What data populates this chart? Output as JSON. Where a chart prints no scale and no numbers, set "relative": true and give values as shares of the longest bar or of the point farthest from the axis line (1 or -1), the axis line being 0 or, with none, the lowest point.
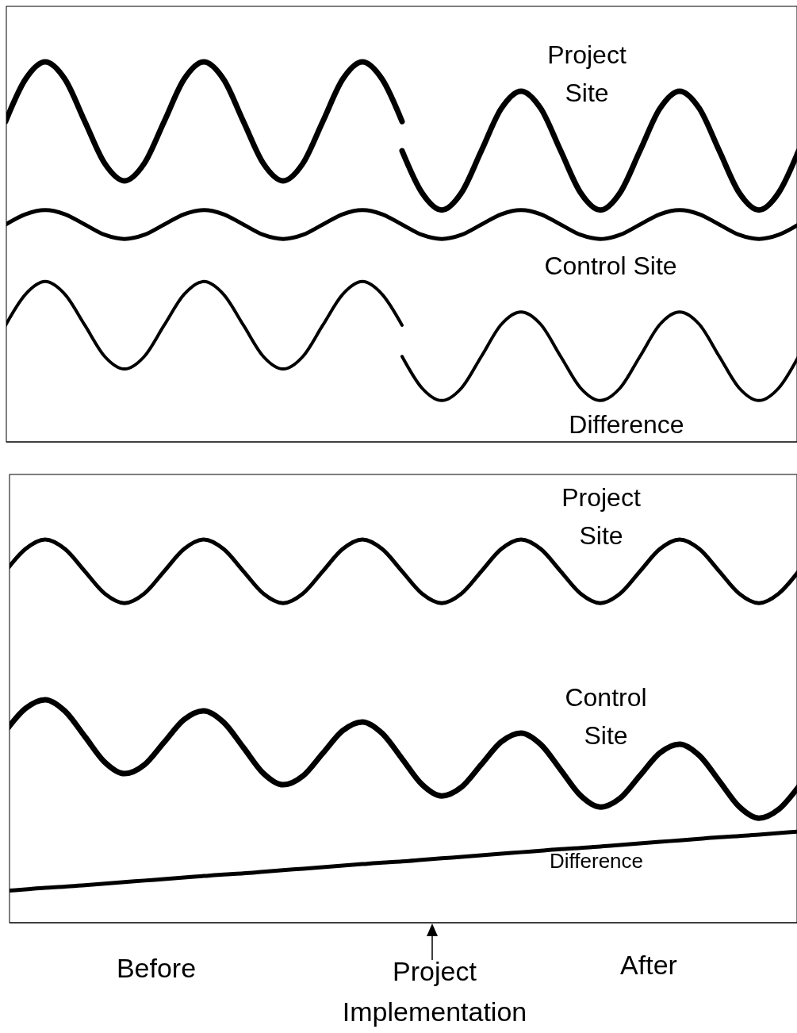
{
  "chart_data": [
    {
      "type": "line",
      "relative": true,
      "categories": [
        null,
        null,
        null,
        null,
        null,
        null,
        null,
        null,
        null,
        null,
        null,
        null,
        null,
        null,
        null,
        null,
        null,
        null,
        null,
        null,
        null,
        null,
        null,
        null,
        null,
        null,
        null,
        null,
        null,
        null,
        null,
        null,
        null,
        null,
        null,
        null,
        null,
        null,
        null,
        null,
        null
      ],
      "series": [
        {
          "color": "#000000",
          "values": [
            0.843,
            0.954,
            1.0,
            0.954,
            0.843,
            0.733,
            0.687,
            0.733,
            0.843,
            0.954,
            1.0,
            0.954,
            0.843,
            0.733,
            0.687,
            0.733,
            0.843,
            0.954,
            1.0,
            0.954,
            0.843,
            null,
            null,
            null,
            null,
            null,
            null,
            null,
            null,
            null,
            null,
            null,
            null,
            null,
            null,
            null,
            null,
            null,
            null,
            null,
            null
          ]
        },
        {
          "name": "Project Site",
          "color": "#000000",
          "values": [
            null,
            null,
            null,
            null,
            null,
            null,
            null,
            null,
            null,
            null,
            null,
            null,
            null,
            null,
            null,
            null,
            null,
            null,
            null,
            null,
            0.766,
            0.656,
            0.61,
            0.656,
            0.766,
            0.877,
            0.923,
            0.877,
            0.766,
            0.656,
            0.61,
            0.656,
            0.766,
            0.877,
            0.923,
            0.877,
            0.766,
            0.656,
            0.61,
            0.656,
            0.766
          ]
        },
        {
          "name": "Control Site",
          "color": "#000000",
          "values": [
            0.572,
            0.599,
            0.61,
            0.599,
            0.572,
            0.545,
            0.534,
            0.545,
            0.572,
            0.599,
            0.61,
            0.599,
            0.572,
            0.545,
            0.534,
            0.545,
            0.572,
            0.599,
            0.61,
            0.599,
            0.572,
            0.545,
            0.534,
            0.545,
            0.572,
            0.599,
            0.61,
            0.599,
            0.572,
            0.545,
            0.534,
            0.545,
            0.572,
            0.599,
            0.61,
            0.599,
            0.572,
            0.545,
            0.534,
            0.545,
            0.572
          ]
        },
        {
          "color": "#000000",
          "values": [
            0.307,
            0.388,
            0.422,
            0.388,
            0.307,
            0.225,
            0.192,
            0.225,
            0.307,
            0.388,
            0.422,
            0.388,
            0.307,
            0.225,
            0.192,
            0.225,
            0.307,
            0.388,
            0.422,
            0.388,
            0.307,
            null,
            null,
            null,
            null,
            null,
            null,
            null,
            null,
            null,
            null,
            null,
            null,
            null,
            null,
            null,
            null,
            null,
            null,
            null,
            null
          ]
        },
        {
          "name": "Difference",
          "color": "#000000",
          "values": [
            null,
            null,
            null,
            null,
            null,
            null,
            null,
            null,
            null,
            null,
            null,
            null,
            null,
            null,
            null,
            null,
            null,
            null,
            null,
            null,
            0.225,
            0.142,
            0.109,
            0.142,
            0.225,
            0.309,
            0.342,
            0.309,
            0.225,
            0.142,
            0.109,
            0.142,
            0.225,
            0.309,
            0.342,
            0.309,
            0.225,
            0.142,
            0.109,
            0.142,
            0.225
          ]
        }
      ]
    },
    {
      "type": "line",
      "relative": true,
      "categories": [
        null,
        null,
        null,
        null,
        null,
        null,
        null,
        null,
        null,
        null,
        null,
        null,
        null,
        null,
        null,
        null,
        null,
        null,
        null,
        null,
        null,
        null,
        null,
        null,
        null,
        null,
        null,
        null,
        null,
        null,
        null,
        null,
        null,
        null,
        null,
        null,
        null,
        null,
        null,
        null,
        null
      ],
      "series": [
        {
          "name": "Project Site",
          "color": "#000000",
          "values": [
            0.917,
            0.975,
            1.0,
            0.975,
            0.917,
            0.859,
            0.834,
            0.859,
            0.917,
            0.975,
            1.0,
            0.975,
            0.917,
            0.859,
            0.834,
            0.859,
            0.917,
            0.975,
            1.0,
            0.975,
            0.917,
            0.859,
            0.834,
            0.859,
            0.917,
            0.975,
            1.0,
            0.975,
            0.917,
            0.859,
            0.834,
            0.859,
            0.917,
            0.975,
            1.0,
            0.975,
            0.917,
            0.859,
            0.834,
            0.859,
            0.917
          ]
        },
        {
          "name": "Control Site",
          "color": "#000000",
          "values": [
            0.5,
            0.559,
            0.582,
            0.552,
            0.486,
            0.419,
            0.389,
            0.412,
            0.471,
            0.53,
            0.553,
            0.523,
            0.457,
            0.39,
            0.36,
            0.383,
            0.442,
            0.501,
            0.524,
            0.494,
            0.428,
            0.361,
            0.331,
            0.354,
            0.413,
            0.472,
            0.495,
            0.465,
            0.399,
            0.332,
            0.302,
            0.325,
            0.384,
            0.443,
            0.466,
            0.436,
            0.37,
            0.303,
            0.273,
            0.296,
            0.355
          ]
        },
        {
          "name": "Difference",
          "color": "#000000",
          "values": [
            0.083,
            0.087,
            0.091,
            0.094,
            0.098,
            0.102,
            0.106,
            0.11,
            0.114,
            0.118,
            0.122,
            0.126,
            0.129,
            0.133,
            0.137,
            0.141,
            0.145,
            0.149,
            0.153,
            0.157,
            0.16,
            0.164,
            0.168,
            0.172,
            0.176,
            0.18,
            0.184,
            0.188,
            0.192,
            0.195,
            0.199,
            0.203,
            0.207,
            0.211,
            0.215,
            0.219,
            0.223,
            0.226,
            0.23,
            0.234,
            0.238
          ]
        }
      ],
      "annotations": [
        "Before",
        "Project Implementation",
        "After"
      ]
    }
  ]
}
